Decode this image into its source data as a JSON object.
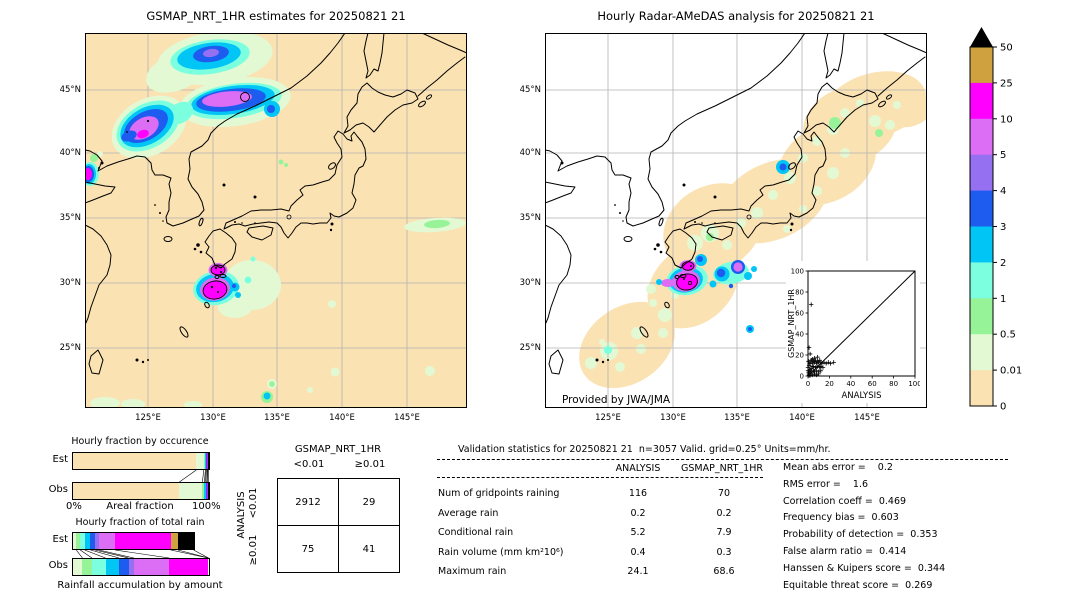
{
  "palette": {
    "none": "#FBE2B3",
    "p001": "#E3F9D3",
    "p05": "#97F397",
    "p1": "#7CFFDF",
    "p2": "#00C5F5",
    "p3": "#1E5BEF",
    "p4": "#9571F1",
    "p5": "#DC6EF5",
    "p10": "#FF00FF",
    "p25": "#D0A23F",
    "p50": "#000000",
    "grid": "#b3b3b3",
    "coast": "#000000",
    "sea_right": "#ffffff"
  },
  "maps": {
    "left_title": "GSMAP_NRT_1HR estimates for 20250821 21",
    "right_title": "Hourly Radar-AMeDAS analysis for 20250821 21",
    "credit": "Provided by JWA/JMA",
    "lon_ticks": [
      "125°E",
      "130°E",
      "135°E",
      "140°E",
      "145°E"
    ],
    "lat_ticks": [
      "45°N",
      "40°N",
      "35°N",
      "30°N",
      "25°N"
    ]
  },
  "colorbar": {
    "labels": [
      "50",
      "25",
      "10",
      "5",
      "4",
      "3",
      "2",
      "1",
      "0.5",
      "0.01",
      "0"
    ],
    "blocks_top_to_bottom": [
      "p25",
      "p10",
      "p5",
      "p4",
      "p3",
      "p2",
      "p1",
      "p05",
      "p001",
      "none"
    ],
    "overflow": "p50",
    "units": "mm/hr"
  },
  "chart_data": [
    {
      "id": "occurrence",
      "type": "bar",
      "stacked": true,
      "title": "Hourly fraction by occurence",
      "xlabel": "Areal fraction",
      "x_range_labels": [
        "0%",
        "100%"
      ],
      "categories": [
        "Est",
        "Obs"
      ],
      "series": [
        {
          "name": "Est",
          "segments": [
            [
              "none",
              91.0
            ],
            [
              "p001",
              5.5
            ],
            [
              "p05",
              1.2
            ],
            [
              "p2",
              0.6
            ],
            [
              "p3",
              0.7
            ],
            [
              "p10",
              0.5
            ],
            [
              "p50",
              0.5
            ]
          ]
        },
        {
          "name": "Obs",
          "segments": [
            [
              "none",
              78.5
            ],
            [
              "p001",
              17.0
            ],
            [
              "p05",
              1.5
            ],
            [
              "p2",
              0.8
            ],
            [
              "p3",
              0.9
            ],
            [
              "p10",
              0.6
            ],
            [
              "p50",
              0.7
            ]
          ]
        }
      ]
    },
    {
      "id": "totalrain",
      "type": "bar",
      "stacked": true,
      "title": "Hourly fraction of total rain",
      "footer": "Rainfall accumulation by amount",
      "categories": [
        "Est",
        "Obs"
      ],
      "series": [
        {
          "name": "Est",
          "segments": [
            [
              "p001",
              2.4
            ],
            [
              "p05",
              2.9
            ],
            [
              "p1",
              3.3
            ],
            [
              "p2",
              4.3
            ],
            [
              "p3",
              3.3
            ],
            [
              "p4",
              2.9
            ],
            [
              "p5",
              12.0
            ],
            [
              "p10",
              41.0
            ],
            [
              "p25",
              5.3
            ],
            [
              "p50",
              11.6
            ]
          ]
        },
        {
          "name": "Obs",
          "segments": [
            [
              "p001",
              7.0
            ],
            [
              "p05",
              7.0
            ],
            [
              "p1",
              10.0
            ],
            [
              "p2",
              10.0
            ],
            [
              "p3",
              7.0
            ],
            [
              "p4",
              4.0
            ],
            [
              "p5",
              26.0
            ],
            [
              "p10",
              29.0
            ]
          ]
        }
      ]
    },
    {
      "id": "scatter",
      "type": "scatter",
      "xlabel": "ANALYSIS",
      "ylabel": "GSMAP_NRT_1HR",
      "xlim": [
        0,
        100
      ],
      "ylim": [
        0,
        100
      ],
      "ticks": [
        0,
        20,
        40,
        60,
        80,
        100
      ],
      "diagonal": true,
      "points": [
        [
          3,
          68
        ],
        [
          1,
          27
        ],
        [
          2,
          21
        ],
        [
          0.5,
          14
        ],
        [
          2,
          13
        ],
        [
          3,
          15
        ],
        [
          4,
          12
        ],
        [
          5,
          14
        ],
        [
          6,
          13
        ],
        [
          7,
          15
        ],
        [
          8,
          12
        ],
        [
          9,
          14
        ],
        [
          10,
          13
        ],
        [
          11,
          15
        ],
        [
          12,
          13
        ],
        [
          13,
          12
        ],
        [
          15,
          13
        ],
        [
          17,
          12
        ],
        [
          19,
          13
        ],
        [
          21,
          12
        ],
        [
          24,
          13
        ],
        [
          5,
          9
        ],
        [
          7,
          8
        ],
        [
          9,
          9
        ],
        [
          11,
          8
        ],
        [
          3,
          7
        ],
        [
          2,
          6
        ],
        [
          1,
          5
        ],
        [
          3,
          4
        ],
        [
          5,
          5
        ],
        [
          6,
          4
        ],
        [
          8,
          5
        ],
        [
          10,
          4
        ],
        [
          2,
          2
        ],
        [
          1,
          1
        ],
        [
          0.5,
          3
        ],
        [
          1,
          0.5
        ],
        [
          2,
          0.5
        ],
        [
          4,
          1
        ],
        [
          6,
          2
        ],
        [
          8,
          1
        ],
        [
          10,
          2
        ],
        [
          12,
          5
        ],
        [
          4,
          9
        ],
        [
          0,
          5
        ],
        [
          0,
          8
        ],
        [
          1,
          10
        ],
        [
          2,
          12
        ],
        [
          4,
          16
        ],
        [
          6,
          17
        ],
        [
          9,
          18
        ],
        [
          12,
          9
        ],
        [
          14,
          8
        ]
      ]
    },
    {
      "id": "contingency",
      "type": "table",
      "col_group": "GSMAP_NRT_1HR",
      "row_group": "ANALYSIS",
      "col_labels": [
        "<0.01",
        "≥0.01"
      ],
      "row_labels": [
        "<0.01",
        "≥0.01"
      ],
      "values": [
        [
          "2912",
          "29"
        ],
        [
          "75",
          "41"
        ]
      ]
    }
  ],
  "validation": {
    "title": "Validation statistics for 20250821 21  n=3057 Valid. grid=0.25° Units=mm/hr.",
    "col_headers": [
      "ANALYSIS",
      "GSMAP_NRT_1HR"
    ],
    "rows": [
      {
        "label": "Num of gridpoints raining",
        "analysis": "116",
        "gsmap": "70"
      },
      {
        "label": "Average rain",
        "analysis": "0.2",
        "gsmap": "0.2"
      },
      {
        "label": "Conditional rain",
        "analysis": "5.2",
        "gsmap": "7.9"
      },
      {
        "label": "Rain volume (mm km²10⁶)",
        "analysis": "0.4",
        "gsmap": "0.3"
      },
      {
        "label": "Maximum rain",
        "analysis": "24.1",
        "gsmap": "68.6"
      }
    ]
  },
  "skill": {
    "lines": [
      "Mean abs error =    0.2",
      "RMS error =    1.6",
      "Correlation coeff =  0.469",
      "Frequency bias =  0.603",
      "Probability of detection =  0.353",
      "False alarm ratio =  0.414",
      "Hanssen & Kuipers score =  0.344",
      "Equitable threat score =  0.269"
    ]
  }
}
